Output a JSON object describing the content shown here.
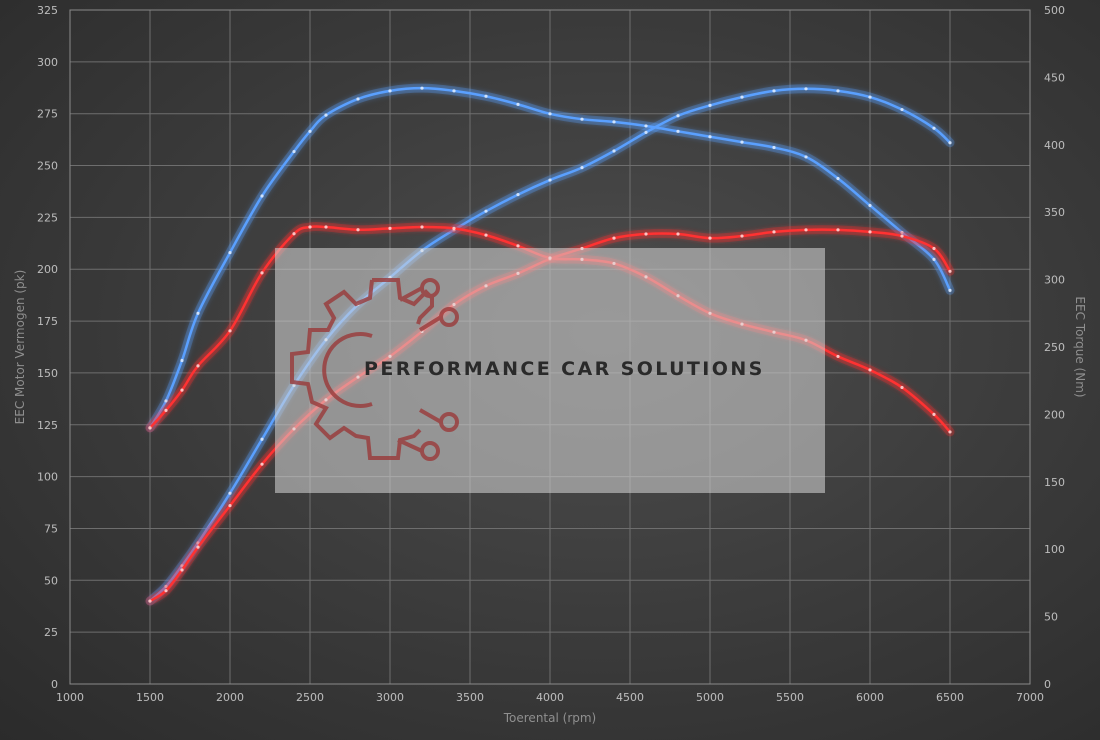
{
  "chart_data": {
    "type": "line",
    "xlabel": "Toerental (rpm)",
    "ylabel_left": "EEC Motor Vermogen (pk)",
    "ylabel_right": "EEC Torque (Nm)",
    "xlim": [
      1000,
      7000
    ],
    "x_ticks": [
      1000,
      1500,
      2000,
      2500,
      3000,
      3500,
      4000,
      4500,
      5000,
      5500,
      6000,
      6500,
      7000
    ],
    "ylim_left": [
      0,
      325
    ],
    "y_ticks_left": [
      0,
      25,
      50,
      75,
      100,
      125,
      150,
      175,
      200,
      225,
      250,
      275,
      300,
      325
    ],
    "ylim_right": [
      0,
      500
    ],
    "y_ticks_right": [
      0,
      50,
      100,
      150,
      200,
      250,
      300,
      350,
      400,
      450,
      500
    ],
    "grid": true,
    "colors": {
      "tuned": "#5aa0ff",
      "stock": "#ff3030"
    },
    "series": [
      {
        "axis": "left",
        "color": "tuned",
        "x": [
          1500,
          1600,
          1700,
          1800,
          2000,
          2200,
          2400,
          2600,
          2800,
          3000,
          3200,
          3400,
          3600,
          3800,
          4000,
          4200,
          4400,
          4600,
          4800,
          5000,
          5200,
          5400,
          5600,
          5800,
          6000,
          6200,
          6400,
          6500
        ],
        "y": [
          40,
          47,
          57,
          68,
          92,
          118,
          144,
          166,
          183,
          196,
          209,
          219,
          228,
          236,
          243,
          249,
          257,
          266,
          274,
          279,
          283,
          286,
          287,
          286,
          283,
          277,
          268,
          261
        ]
      },
      {
        "axis": "right",
        "color": "tuned",
        "x": [
          1500,
          1600,
          1700,
          1800,
          2000,
          2200,
          2400,
          2500,
          2600,
          2800,
          3000,
          3200,
          3400,
          3600,
          3800,
          4000,
          4200,
          4400,
          4600,
          4800,
          5000,
          5200,
          5400,
          5600,
          5800,
          6000,
          6200,
          6400,
          6500
        ],
        "y": [
          190,
          210,
          240,
          275,
          320,
          362,
          395,
          410,
          422,
          434,
          440,
          442,
          440,
          436,
          430,
          423,
          419,
          417,
          414,
          410,
          406,
          402,
          398,
          391,
          375,
          355,
          335,
          315,
          292
        ]
      },
      {
        "axis": "left",
        "color": "stock",
        "x": [
          1500,
          1600,
          1700,
          1800,
          2000,
          2200,
          2400,
          2600,
          2800,
          3000,
          3200,
          3400,
          3600,
          3800,
          4000,
          4200,
          4400,
          4600,
          4800,
          5000,
          5200,
          5400,
          5600,
          5800,
          6000,
          6200,
          6400,
          6500
        ],
        "y": [
          40,
          45,
          55,
          66,
          86,
          106,
          123,
          137,
          148,
          158,
          170,
          183,
          192,
          198,
          205,
          210,
          215,
          217,
          217,
          215,
          216,
          218,
          219,
          219,
          218,
          216,
          210,
          199
        ]
      },
      {
        "axis": "right",
        "color": "stock",
        "x": [
          1500,
          1600,
          1700,
          1800,
          2000,
          2200,
          2400,
          2500,
          2600,
          2800,
          3000,
          3200,
          3400,
          3600,
          3800,
          4000,
          4200,
          4400,
          4600,
          4800,
          5000,
          5200,
          5400,
          5600,
          5800,
          6000,
          6200,
          6400,
          6500
        ],
        "y": [
          190,
          203,
          218,
          236,
          262,
          305,
          334,
          339,
          339,
          337,
          338,
          339,
          338,
          333,
          325,
          316,
          315,
          312,
          302,
          288,
          275,
          267,
          261,
          255,
          243,
          233,
          220,
          200,
          187
        ]
      }
    ]
  },
  "watermark": {
    "text": "PERFORMANCE CAR SOLUTIONS",
    "logo": "gear-circuit-logo"
  }
}
